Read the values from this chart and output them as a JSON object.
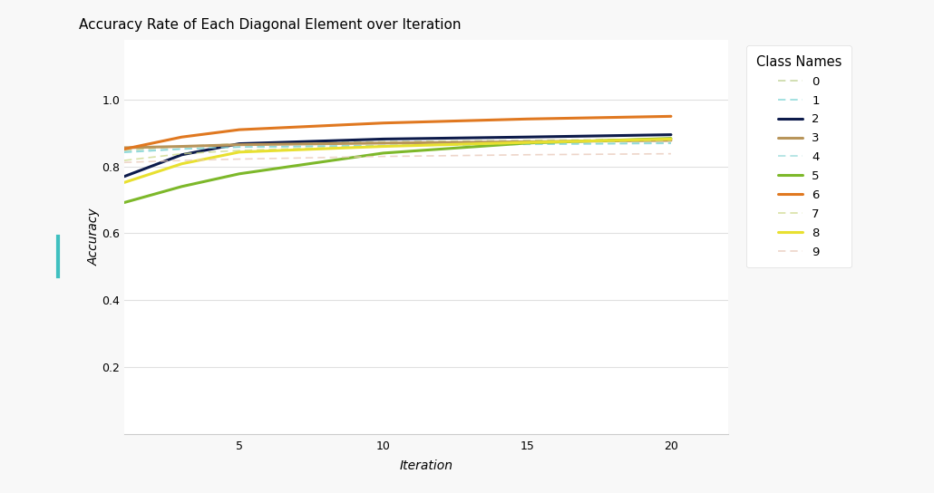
{
  "title": "Accuracy Rate of Each Diagonal Element over Iteration",
  "xlabel": "Iteration",
  "ylabel": "Accuracy",
  "xlim": [
    1,
    22
  ],
  "ylim": [
    0.0,
    1.18
  ],
  "yticks": [
    0.2,
    0.4,
    0.6,
    0.8,
    1.0
  ],
  "xticks": [
    5,
    10,
    15,
    20
  ],
  "background_color": "#f8f8f8",
  "plot_bg_color": "#ffffff",
  "grid_color": "#e0e0e0",
  "legend_title": "Class Names",
  "toolbar_color": "#f0f0f0",
  "series": [
    {
      "label": "0",
      "color": "#b8cc88",
      "linewidth": 1.2,
      "linestyle": "dashed",
      "alpha": 0.75,
      "points": [
        [
          1,
          0.848
        ],
        [
          3,
          0.86
        ],
        [
          5,
          0.868
        ],
        [
          10,
          0.874
        ],
        [
          15,
          0.878
        ],
        [
          20,
          0.882
        ]
      ]
    },
    {
      "label": "1",
      "color": "#70d0d0",
      "linewidth": 1.2,
      "linestyle": "dashed",
      "alpha": 0.75,
      "points": [
        [
          1,
          0.842
        ],
        [
          3,
          0.852
        ],
        [
          5,
          0.858
        ],
        [
          10,
          0.863
        ],
        [
          15,
          0.867
        ],
        [
          20,
          0.87
        ]
      ]
    },
    {
      "label": "2",
      "color": "#0d1b4b",
      "linewidth": 2.2,
      "linestyle": "solid",
      "alpha": 1.0,
      "points": [
        [
          1,
          0.77
        ],
        [
          3,
          0.835
        ],
        [
          5,
          0.868
        ],
        [
          10,
          0.882
        ],
        [
          15,
          0.888
        ],
        [
          20,
          0.895
        ]
      ]
    },
    {
      "label": "3",
      "color": "#b8955a",
      "linewidth": 2.2,
      "linestyle": "solid",
      "alpha": 1.0,
      "points": [
        [
          1,
          0.856
        ],
        [
          3,
          0.86
        ],
        [
          5,
          0.865
        ],
        [
          10,
          0.87
        ],
        [
          15,
          0.874
        ],
        [
          20,
          0.878
        ]
      ]
    },
    {
      "label": "4",
      "color": "#90d8d8",
      "linewidth": 1.2,
      "linestyle": "dashed",
      "alpha": 0.75,
      "points": [
        [
          1,
          0.844
        ],
        [
          3,
          0.853
        ],
        [
          5,
          0.858
        ],
        [
          10,
          0.862
        ],
        [
          15,
          0.866
        ],
        [
          20,
          0.869
        ]
      ]
    },
    {
      "label": "5",
      "color": "#7db82a",
      "linewidth": 2.2,
      "linestyle": "solid",
      "alpha": 1.0,
      "points": [
        [
          1,
          0.692
        ],
        [
          3,
          0.74
        ],
        [
          5,
          0.778
        ],
        [
          10,
          0.84
        ],
        [
          15,
          0.87
        ],
        [
          20,
          0.884
        ]
      ]
    },
    {
      "label": "6",
      "color": "#e07820",
      "linewidth": 2.2,
      "linestyle": "solid",
      "alpha": 1.0,
      "points": [
        [
          1,
          0.852
        ],
        [
          3,
          0.888
        ],
        [
          5,
          0.91
        ],
        [
          10,
          0.93
        ],
        [
          15,
          0.942
        ],
        [
          20,
          0.95
        ]
      ]
    },
    {
      "label": "7",
      "color": "#ccd888",
      "linewidth": 1.2,
      "linestyle": "dashed",
      "alpha": 0.75,
      "points": [
        [
          1,
          0.818
        ],
        [
          3,
          0.838
        ],
        [
          5,
          0.848
        ],
        [
          10,
          0.862
        ],
        [
          15,
          0.87
        ],
        [
          20,
          0.878
        ]
      ]
    },
    {
      "label": "8",
      "color": "#e8e030",
      "linewidth": 2.2,
      "linestyle": "solid",
      "alpha": 1.0,
      "points": [
        [
          1,
          0.752
        ],
        [
          3,
          0.808
        ],
        [
          5,
          0.843
        ],
        [
          10,
          0.86
        ],
        [
          15,
          0.872
        ],
        [
          20,
          0.882
        ]
      ]
    },
    {
      "label": "9",
      "color": "#e8c8b8",
      "linewidth": 1.2,
      "linestyle": "dashed",
      "alpha": 0.75,
      "points": [
        [
          1,
          0.812
        ],
        [
          3,
          0.818
        ],
        [
          5,
          0.822
        ],
        [
          10,
          0.83
        ],
        [
          15,
          0.835
        ],
        [
          20,
          0.838
        ]
      ]
    }
  ]
}
